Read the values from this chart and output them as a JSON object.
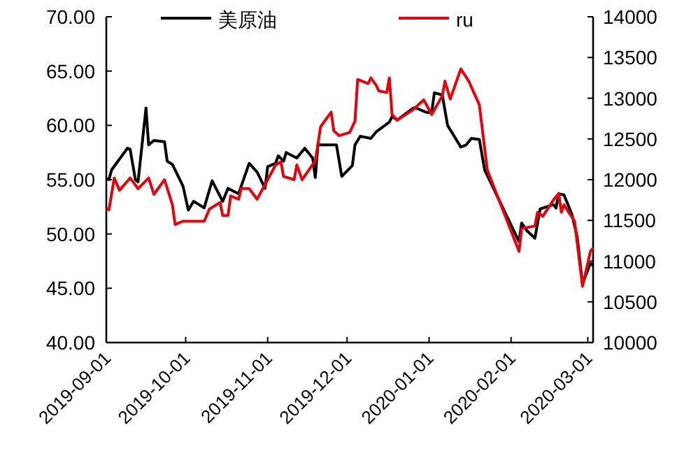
{
  "chart_data": {
    "type": "line",
    "legend": "top",
    "grid": false,
    "xlim": [
      "2019-09-01",
      "2020-03-03"
    ],
    "xticks": [
      "2019-09-01",
      "2019-10-01",
      "2019-11-01",
      "2019-12-01",
      "2020-01-01",
      "2020-02-01",
      "2020-03-01"
    ],
    "ylim": [
      40,
      70
    ],
    "yticks": [
      {
        "value": 40,
        "label": "40.00"
      },
      {
        "value": 45,
        "label": "45.00"
      },
      {
        "value": 50,
        "label": "50.00"
      },
      {
        "value": 55,
        "label": "55.00"
      },
      {
        "value": 60,
        "label": "60.00"
      },
      {
        "value": 65,
        "label": "65.00"
      },
      {
        "value": 70,
        "label": "70.00"
      }
    ],
    "y2lim": [
      10000,
      14000
    ],
    "y2ticks": [
      10000,
      10500,
      11000,
      11500,
      12000,
      12500,
      13000,
      13500,
      14000
    ],
    "series": [
      {
        "name": "美原油",
        "color": "#000000",
        "x": [
          "2019-09-01",
          "2019-09-02",
          "2019-09-03",
          "2019-09-09",
          "2019-09-10",
          "2019-09-12",
          "2019-09-13",
          "2019-09-16",
          "2019-09-17",
          "2019-09-19",
          "2019-09-23",
          "2019-09-24",
          "2019-09-26",
          "2019-09-30",
          "2019-10-02",
          "2019-10-04",
          "2019-10-08",
          "2019-10-11",
          "2019-10-15",
          "2019-10-17",
          "2019-10-21",
          "2019-10-25",
          "2019-10-28",
          "2019-10-31",
          "2019-11-01",
          "2019-11-04",
          "2019-11-05",
          "2019-11-07",
          "2019-11-08",
          "2019-11-12",
          "2019-11-15",
          "2019-11-18",
          "2019-11-19",
          "2019-11-20",
          "2019-11-25",
          "2019-11-27",
          "2019-11-29",
          "2019-12-03",
          "2019-12-04",
          "2019-12-06",
          "2019-12-10",
          "2019-12-12",
          "2019-12-17",
          "2019-12-18",
          "2019-12-20",
          "2019-12-26",
          "2019-12-27",
          "2019-12-31",
          "2020-01-02",
          "2020-01-03",
          "2020-01-06",
          "2020-01-08",
          "2020-01-13",
          "2020-01-15",
          "2020-01-17",
          "2020-01-20",
          "2020-01-22",
          "2020-02-04",
          "2020-02-05",
          "2020-02-07",
          "2020-02-10",
          "2020-02-12",
          "2020-02-17",
          "2020-02-18",
          "2020-02-19",
          "2020-02-21",
          "2020-02-24",
          "2020-02-26",
          "2020-02-28",
          "2020-03-02",
          "2020-03-03"
        ],
        "values": [
          55.1,
          55.0,
          55.9,
          57.9,
          57.8,
          55.0,
          54.8,
          61.6,
          58.2,
          58.6,
          58.5,
          56.7,
          56.4,
          54.4,
          52.2,
          53.0,
          52.4,
          54.9,
          53.0,
          54.2,
          53.7,
          56.5,
          55.7,
          54.2,
          56.2,
          56.5,
          57.2,
          56.7,
          57.5,
          57.0,
          57.9,
          57.0,
          55.2,
          58.2,
          58.2,
          58.2,
          55.3,
          56.3,
          58.2,
          59.0,
          58.8,
          59.4,
          60.3,
          60.8,
          60.5,
          61.6,
          61.6,
          61.2,
          61.2,
          63.0,
          62.8,
          60.0,
          58.0,
          58.2,
          58.8,
          58.7,
          55.9,
          49.3,
          51.0,
          50.3,
          49.6,
          52.3,
          52.7,
          52.4,
          53.7,
          53.6,
          51.8,
          49.7,
          45.4,
          47.3,
          47.1
        ]
      },
      {
        "name": "ru",
        "color": "#e8000b",
        "axis": "y2",
        "x": [
          "2019-09-01",
          "2019-09-02",
          "2019-09-04",
          "2019-09-06",
          "2019-09-10",
          "2019-09-13",
          "2019-09-17",
          "2019-09-19",
          "2019-09-23",
          "2019-09-26",
          "2019-09-27",
          "2019-09-30",
          "2019-10-08",
          "2019-10-10",
          "2019-10-14",
          "2019-10-15",
          "2019-10-17",
          "2019-10-18",
          "2019-10-21",
          "2019-10-22",
          "2019-10-25",
          "2019-10-28",
          "2019-11-01",
          "2019-11-04",
          "2019-11-06",
          "2019-11-07",
          "2019-11-11",
          "2019-11-12",
          "2019-11-14",
          "2019-11-19",
          "2019-11-21",
          "2019-11-25",
          "2019-11-26",
          "2019-11-28",
          "2019-12-02",
          "2019-12-04",
          "2019-12-05",
          "2019-12-09",
          "2019-12-10",
          "2019-12-12",
          "2019-12-13",
          "2019-12-16",
          "2019-12-17",
          "2019-12-18",
          "2019-12-20",
          "2019-12-26",
          "2019-12-30",
          "2020-01-02",
          "2020-01-06",
          "2020-01-07",
          "2020-01-09",
          "2020-01-13",
          "2020-01-16",
          "2020-01-20",
          "2020-01-23",
          "2020-02-04",
          "2020-02-05",
          "2020-02-10",
          "2020-02-11",
          "2020-02-13",
          "2020-02-17",
          "2020-02-19",
          "2020-02-20",
          "2020-02-21",
          "2020-02-25",
          "2020-02-28",
          "2020-03-02",
          "2020-03-03"
        ],
        "values": [
          11640,
          11630,
          12020,
          11870,
          12020,
          11890,
          12020,
          11820,
          12000,
          11690,
          11450,
          11490,
          11490,
          11640,
          11720,
          11560,
          11560,
          11800,
          11760,
          11890,
          11890,
          11760,
          12000,
          12180,
          12220,
          12040,
          12000,
          12180,
          12000,
          12230,
          12650,
          12830,
          12600,
          12540,
          12580,
          12720,
          13230,
          13180,
          13250,
          13160,
          13090,
          13070,
          13250,
          12800,
          12730,
          12860,
          12980,
          12800,
          13030,
          13210,
          12990,
          13360,
          13210,
          12920,
          12120,
          11120,
          11400,
          11430,
          11600,
          11550,
          11750,
          11830,
          11600,
          11690,
          11490,
          10690,
          11120,
          11160
        ]
      }
    ]
  }
}
